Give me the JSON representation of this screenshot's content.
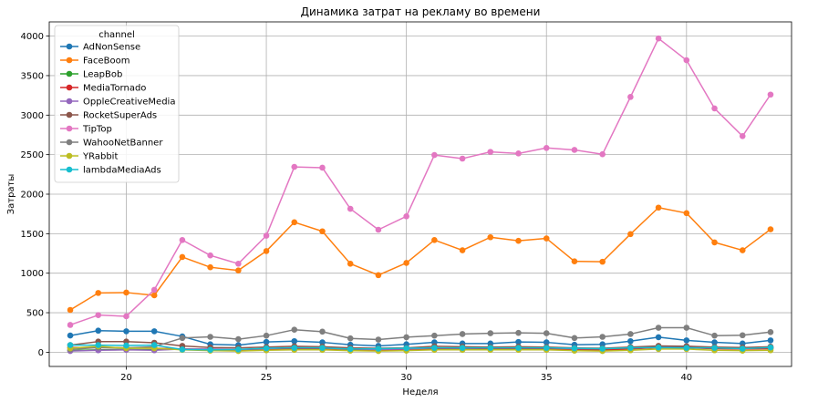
{
  "chart_data": {
    "type": "line",
    "title": "Динамика затрат на рекламу во времени",
    "xlabel": "Неделя",
    "ylabel": "Затраты",
    "xlim": [
      17.25,
      43.75
    ],
    "ylim": [
      -180,
      4180
    ],
    "xticks": [
      20,
      25,
      30,
      35,
      40
    ],
    "yticks": [
      0,
      500,
      1000,
      1500,
      2000,
      2500,
      3000,
      3500,
      4000
    ],
    "grid": true,
    "legend": {
      "title": "channel",
      "placement": "top-left"
    },
    "x": [
      18,
      19,
      20,
      21,
      22,
      23,
      24,
      25,
      26,
      27,
      28,
      29,
      30,
      31,
      32,
      33,
      34,
      35,
      36,
      37,
      38,
      39,
      40,
      41,
      42,
      43
    ],
    "series": [
      {
        "name": "AdNonSense",
        "color": "#1f77b4",
        "values": [
          211,
          273,
          265,
          265,
          200,
          100,
          90,
          130,
          140,
          125,
          95,
          80,
          100,
          125,
          110,
          110,
          130,
          125,
          95,
          100,
          140,
          190,
          150,
          125,
          110,
          150
        ]
      },
      {
        "name": "FaceBoom",
        "color": "#ff7f0e",
        "values": [
          535,
          750,
          755,
          720,
          1205,
          1075,
          1035,
          1280,
          1645,
          1530,
          1120,
          975,
          1130,
          1420,
          1290,
          1455,
          1410,
          1440,
          1150,
          1145,
          1495,
          1830,
          1760,
          1390,
          1290,
          1555
        ]
      },
      {
        "name": "LeapBob",
        "color": "#2ca02c",
        "values": [
          20,
          30,
          35,
          30,
          40,
          35,
          30,
          40,
          50,
          45,
          30,
          30,
          35,
          45,
          45,
          50,
          50,
          45,
          40,
          40,
          50,
          60,
          60,
          50,
          45,
          55
        ]
      },
      {
        "name": "MediaTornado",
        "color": "#d62728",
        "values": [
          60,
          60,
          55,
          50,
          40,
          35,
          30,
          40,
          45,
          40,
          30,
          25,
          30,
          40,
          35,
          40,
          40,
          40,
          30,
          25,
          40,
          60,
          55,
          45,
          40,
          45
        ]
      },
      {
        "name": "OppleCreativeMedia",
        "color": "#9467bd",
        "values": [
          15,
          25,
          30,
          25,
          40,
          40,
          35,
          45,
          60,
          55,
          40,
          35,
          40,
          55,
          50,
          55,
          55,
          55,
          45,
          45,
          60,
          70,
          75,
          60,
          55,
          65
        ]
      },
      {
        "name": "RocketSuperAds",
        "color": "#8c564b",
        "values": [
          90,
          135,
          135,
          120,
          80,
          60,
          55,
          65,
          75,
          70,
          55,
          50,
          55,
          75,
          70,
          65,
          70,
          65,
          55,
          50,
          65,
          80,
          75,
          65,
          60,
          70
        ]
      },
      {
        "name": "TipTop",
        "color": "#e377c2",
        "values": [
          345,
          470,
          455,
          790,
          1420,
          1225,
          1120,
          1475,
          2345,
          2335,
          1815,
          1550,
          1720,
          2495,
          2450,
          2535,
          2515,
          2585,
          2560,
          2505,
          3230,
          3970,
          3695,
          3085,
          2735,
          3260
        ]
      },
      {
        "name": "WahooNetBanner",
        "color": "#7f7f7f",
        "values": [
          35,
          60,
          55,
          70,
          180,
          195,
          165,
          210,
          285,
          260,
          175,
          160,
          190,
          210,
          230,
          240,
          245,
          240,
          180,
          195,
          230,
          310,
          310,
          210,
          215,
          255
        ]
      },
      {
        "name": "YRabbit",
        "color": "#bcbd22",
        "values": [
          50,
          75,
          50,
          50,
          30,
          20,
          15,
          25,
          30,
          30,
          20,
          15,
          20,
          30,
          30,
          30,
          30,
          30,
          20,
          15,
          25,
          40,
          40,
          25,
          20,
          25
        ]
      },
      {
        "name": "lambdaMediaAds",
        "color": "#17becf",
        "values": [
          90,
          90,
          85,
          90,
          35,
          30,
          35,
          50,
          55,
          55,
          40,
          45,
          50,
          55,
          55,
          55,
          55,
          55,
          50,
          45,
          55,
          60,
          55,
          55,
          45,
          60
        ]
      }
    ]
  }
}
